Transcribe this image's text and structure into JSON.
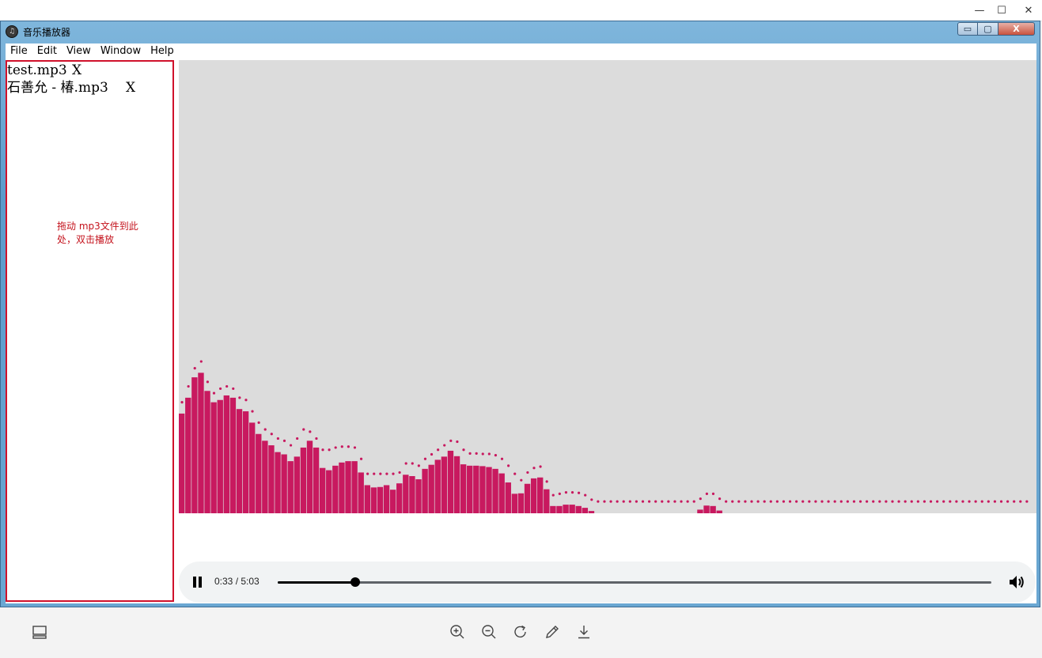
{
  "window": {
    "title": "音乐播放器",
    "min_glyph": "▭",
    "max_glyph": "▢",
    "close_glyph": "X"
  },
  "host": {
    "min_glyph": "—",
    "max_glyph": "☐",
    "close_glyph": "✕"
  },
  "menu": [
    {
      "label": "File"
    },
    {
      "label": "Edit"
    },
    {
      "label": "View"
    },
    {
      "label": "Window"
    },
    {
      "label": "Help"
    }
  ],
  "playlist": {
    "items": [
      {
        "name": "test.mp3",
        "remove": "X"
      },
      {
        "name": "石善允 - 椿.mp3",
        "remove": "X"
      }
    ],
    "hint": "拖动 mp3文件到此处，双击播放"
  },
  "visualizer": {
    "bar_color": "#c8195f",
    "background": "#dcdcdc",
    "bars": [
      0.22,
      0.255,
      0.3,
      0.31,
      0.27,
      0.245,
      0.25,
      0.26,
      0.255,
      0.23,
      0.225,
      0.2,
      0.175,
      0.16,
      0.15,
      0.135,
      0.13,
      0.115,
      0.125,
      0.145,
      0.16,
      0.145,
      0.1,
      0.095,
      0.105,
      0.112,
      0.115,
      0.115,
      0.09,
      0.062,
      0.057,
      0.058,
      0.062,
      0.052,
      0.066,
      0.085,
      0.082,
      0.075,
      0.098,
      0.107,
      0.118,
      0.125,
      0.138,
      0.126,
      0.108,
      0.105,
      0.105,
      0.104,
      0.102,
      0.098,
      0.088,
      0.068,
      0.043,
      0.044,
      0.065,
      0.077,
      0.079,
      0.053,
      0.016,
      0.016,
      0.019,
      0.019,
      0.016,
      0.012,
      0.005,
      0,
      0,
      0,
      0,
      0,
      0,
      0,
      0,
      0,
      0,
      0,
      0,
      0,
      0,
      0,
      0,
      0.008,
      0.017,
      0.016,
      0.006,
      0,
      0,
      0,
      0,
      0,
      0,
      0,
      0,
      0,
      0,
      0,
      0,
      0,
      0,
      0,
      0,
      0,
      0,
      0,
      0,
      0,
      0,
      0,
      0,
      0,
      0,
      0,
      0,
      0,
      0,
      0,
      0,
      0,
      0,
      0,
      0,
      0,
      0,
      0,
      0,
      0,
      0,
      0,
      0,
      0,
      0,
      0,
      0,
      0
    ],
    "peaks": [
      0.245,
      0.28,
      0.32,
      0.335,
      0.29,
      0.265,
      0.275,
      0.28,
      0.275,
      0.255,
      0.25,
      0.225,
      0.2,
      0.185,
      0.175,
      0.165,
      0.16,
      0.15,
      0.165,
      0.185,
      0.18,
      0.165,
      0.14,
      0.14,
      0.145,
      0.147,
      0.147,
      0.145,
      0.12,
      0.087,
      0.087,
      0.087,
      0.087,
      0.087,
      0.09,
      0.11,
      0.11,
      0.105,
      0.12,
      0.13,
      0.14,
      0.15,
      0.16,
      0.158,
      0.14,
      0.132,
      0.132,
      0.131,
      0.131,
      0.128,
      0.12,
      0.105,
      0.087,
      0.073,
      0.09,
      0.1,
      0.103,
      0.07,
      0.04,
      0.043,
      0.046,
      0.046,
      0.045,
      0.04,
      0.03,
      0.026,
      0.026,
      0.026,
      0.026,
      0.026,
      0.026,
      0.026,
      0.026,
      0.026,
      0.026,
      0.026,
      0.026,
      0.026,
      0.026,
      0.026,
      0.026,
      0.032,
      0.043,
      0.043,
      0.032,
      0.026,
      0.026,
      0.026,
      0.026,
      0.026,
      0.026,
      0.026,
      0.026,
      0.026,
      0.026,
      0.026,
      0.026,
      0.026,
      0.026,
      0.026,
      0.026,
      0.026,
      0.026,
      0.026,
      0.026,
      0.026,
      0.026,
      0.026,
      0.026,
      0.026,
      0.026,
      0.026,
      0.026,
      0.026,
      0.026,
      0.026,
      0.026,
      0.026,
      0.026,
      0.026,
      0.026,
      0.026,
      0.026,
      0.026,
      0.026,
      0.026,
      0.026,
      0.026,
      0.026,
      0.026,
      0.026,
      0.026,
      0.026
    ]
  },
  "player": {
    "time": "0:33 / 5:03",
    "progress": 0.109,
    "state": "playing",
    "pause_icon": "pause-icon",
    "volume_icon": "volume-icon"
  },
  "toolbar": {
    "icons": [
      "layout-icon",
      "zoom-in-icon",
      "zoom-out-icon",
      "rotate-icon",
      "edit-icon",
      "download-icon"
    ]
  }
}
